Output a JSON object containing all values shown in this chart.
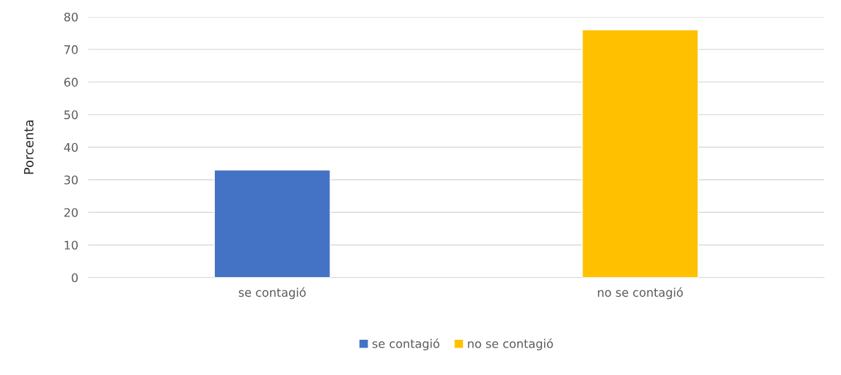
{
  "chart_data": {
    "type": "bar",
    "ylabel": "Porcenta",
    "categories": [
      "se contagió",
      "no se contagió"
    ],
    "series": [
      {
        "name": "se contagió",
        "color": "#4472c4",
        "values": [
          33,
          null
        ]
      },
      {
        "name": "no se contagió",
        "color": "#ffc000",
        "values": [
          null,
          76
        ]
      }
    ],
    "ylim": [
      0,
      80
    ],
    "yticks": [
      0,
      10,
      20,
      30,
      40,
      50,
      60,
      70,
      80
    ],
    "grid": "y",
    "legend": "bottom"
  }
}
